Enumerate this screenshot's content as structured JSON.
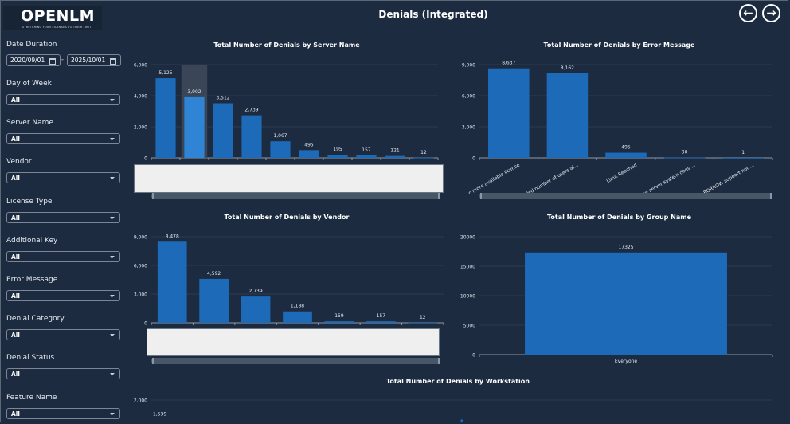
{
  "header": {
    "title": "Denials (Integrated)",
    "logo_text": "OPENLM",
    "logo_tagline": "STRETCHING YOUR LICENSES TO THEIR LIMIT",
    "back_icon": "arrow-left-circle",
    "forward_icon": "arrow-right-circle"
  },
  "filters": {
    "date_duration": {
      "label": "Date Duration",
      "from": "2020/09/01",
      "separator": "-",
      "to": "2025/10/01"
    },
    "dropdowns": [
      {
        "label": "Day of Week",
        "value": "All"
      },
      {
        "label": "Server Name",
        "value": "All"
      },
      {
        "label": "Vendor",
        "value": "All"
      },
      {
        "label": "License Type",
        "value": "All"
      },
      {
        "label": "Additional Key",
        "value": "All"
      },
      {
        "label": "Error Message",
        "value": "All"
      },
      {
        "label": "Denial Category",
        "value": "All"
      },
      {
        "label": "Denial Status",
        "value": "All"
      },
      {
        "label": "Feature Name",
        "value": "All"
      }
    ]
  },
  "colors": {
    "background": "#1c2b40",
    "bar": "#1d6ab8",
    "bar_highlight": "#2f84d6",
    "grid": "#2c3b50"
  },
  "chart_data": [
    {
      "type": "bar",
      "title": "Total Number of Denials by Server Name",
      "categories": [
        "",
        "",
        "",
        "",
        "",
        "",
        "",
        "",
        "",
        ""
      ],
      "values": [
        5125,
        3902,
        3512,
        2739,
        1067,
        495,
        195,
        157,
        121,
        12
      ],
      "labels": [
        "5,125",
        "3,902",
        "3,512",
        "2,739",
        "1,067",
        "495",
        "195",
        "157",
        "121",
        "12"
      ],
      "yticks": [
        "0",
        "2,000",
        "4,000",
        "6,000"
      ],
      "ylim": [
        0,
        6000
      ],
      "hovered_index": 1,
      "grid": true
    },
    {
      "type": "bar",
      "title": "Total Number of Denials by Error Message",
      "categories": [
        "o more available license",
        "eeded number of users al...",
        "Limit Reached",
        "ense server system does ...",
        "e BORROW support not ..."
      ],
      "values": [
        8637,
        8162,
        495,
        30,
        1
      ],
      "labels": [
        "8,637",
        "8,162",
        "495",
        "30",
        "1"
      ],
      "yticks": [
        "0",
        "3,000",
        "6,000",
        "9,000"
      ],
      "ylim": [
        0,
        9000
      ],
      "grid": true
    },
    {
      "type": "bar",
      "title": "Total Number of Denials by Vendor",
      "categories": [
        "",
        "",
        "",
        "",
        "",
        "",
        ""
      ],
      "values": [
        8478,
        4592,
        2739,
        1188,
        159,
        157,
        12
      ],
      "labels": [
        "8,478",
        "4,592",
        "2,739",
        "1,188",
        "159",
        "157",
        "12"
      ],
      "yticks": [
        "0",
        "3,000",
        "6,000",
        "9,000"
      ],
      "ylim": [
        0,
        9000
      ],
      "grid": true
    },
    {
      "type": "bar",
      "title": "Total Number of Denials by Group Name",
      "categories": [
        "Everyone"
      ],
      "values": [
        17325
      ],
      "labels": [
        "17325"
      ],
      "yticks": [
        "0",
        "5000",
        "10000",
        "15000",
        "20000"
      ],
      "ylim": [
        0,
        20000
      ],
      "grid": true
    },
    {
      "type": "bar",
      "title": "Total Number of Denials by Workstation",
      "categories": [
        ""
      ],
      "values": [
        1539
      ],
      "labels": [
        "1,539"
      ],
      "yticks": [
        "2,000"
      ],
      "ylim": [
        0,
        2000
      ],
      "grid": true
    }
  ]
}
